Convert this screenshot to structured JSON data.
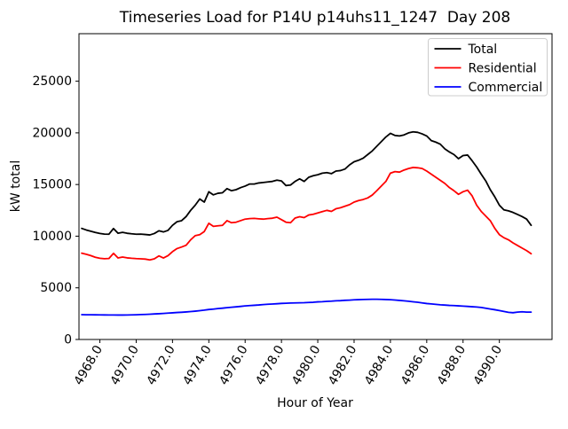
{
  "chart_data": {
    "type": "line",
    "title": "Timeseries Load for P14U p14uhs11_1247  Day 208",
    "xlabel": "Hour of Year",
    "ylabel": "kW total",
    "xlim": [
      4966.85,
      4992.9
    ],
    "ylim": [
      0,
      29600
    ],
    "grid": false,
    "x_tick_rotation": 60,
    "xticks": [
      4968,
      4970,
      4972,
      4974,
      4976,
      4978,
      4980,
      4982,
      4984,
      4986,
      4988,
      4990
    ],
    "xtick_labels": [
      "4968.0",
      "4970.0",
      "4972.0",
      "4974.0",
      "4976.0",
      "4978.0",
      "4980.0",
      "4982.0",
      "4984.0",
      "4986.0",
      "4988.0",
      "4990.0"
    ],
    "yticks": [
      0,
      5000,
      10000,
      15000,
      20000,
      25000
    ],
    "ytick_labels": [
      "0",
      "5000",
      "10000",
      "15000",
      "20000",
      "25000"
    ],
    "legend": {
      "position": "upper right",
      "entries": [
        {
          "label": "Total",
          "color": "#000000"
        },
        {
          "label": "Residential",
          "color": "#ff0000"
        },
        {
          "label": "Commercial",
          "color": "#0000ff"
        }
      ]
    },
    "x": [
      4967.0,
      4967.25,
      4967.5,
      4967.75,
      4968.0,
      4968.25,
      4968.5,
      4968.75,
      4969.0,
      4969.25,
      4969.5,
      4969.75,
      4970.0,
      4970.25,
      4970.5,
      4970.75,
      4971.0,
      4971.25,
      4971.5,
      4971.75,
      4972.0,
      4972.25,
      4972.5,
      4972.75,
      4973.0,
      4973.25,
      4973.5,
      4973.75,
      4974.0,
      4974.25,
      4974.5,
      4974.75,
      4975.0,
      4975.25,
      4975.5,
      4975.75,
      4976.0,
      4976.25,
      4976.5,
      4976.75,
      4977.0,
      4977.25,
      4977.5,
      4977.75,
      4978.0,
      4978.25,
      4978.5,
      4978.75,
      4979.0,
      4979.25,
      4979.5,
      4979.75,
      4980.0,
      4980.25,
      4980.5,
      4980.75,
      4981.0,
      4981.25,
      4981.5,
      4981.75,
      4982.0,
      4982.25,
      4982.5,
      4982.75,
      4983.0,
      4983.25,
      4983.5,
      4983.75,
      4984.0,
      4984.25,
      4984.5,
      4984.75,
      4985.0,
      4985.25,
      4985.5,
      4985.75,
      4986.0,
      4986.25,
      4986.5,
      4986.75,
      4987.0,
      4987.25,
      4987.5,
      4987.75,
      4988.0,
      4988.25,
      4988.5,
      4988.75,
      4989.0,
      4989.25,
      4989.5,
      4989.75,
      4990.0,
      4990.25,
      4990.5,
      4990.75,
      4991.0,
      4991.25,
      4991.5,
      4991.75
    ],
    "series": [
      {
        "name": "Total",
        "color": "#000000",
        "values": [
          10750,
          10600,
          10480,
          10360,
          10260,
          10200,
          10190,
          10740,
          10280,
          10370,
          10280,
          10230,
          10190,
          10200,
          10160,
          10120,
          10260,
          10520,
          10410,
          10560,
          11050,
          11400,
          11500,
          11900,
          12500,
          13000,
          13600,
          13300,
          14300,
          14000,
          14150,
          14200,
          14600,
          14400,
          14500,
          14700,
          14850,
          15050,
          15050,
          15150,
          15200,
          15250,
          15300,
          15420,
          15350,
          14900,
          14950,
          15300,
          15550,
          15300,
          15700,
          15850,
          15950,
          16100,
          16150,
          16050,
          16300,
          16350,
          16500,
          16900,
          17200,
          17350,
          17550,
          17900,
          18250,
          18700,
          19150,
          19600,
          19950,
          19750,
          19700,
          19800,
          20000,
          20100,
          20050,
          19900,
          19700,
          19250,
          19100,
          18900,
          18450,
          18150,
          17900,
          17500,
          17800,
          17850,
          17300,
          16700,
          16000,
          15350,
          14500,
          13800,
          13000,
          12550,
          12450,
          12300,
          12100,
          11900,
          11650,
          11050
        ]
      },
      {
        "name": "Residential",
        "color": "#ff0000",
        "values": [
          8350,
          8250,
          8120,
          7960,
          7860,
          7820,
          7840,
          8340,
          7890,
          7980,
          7900,
          7860,
          7830,
          7810,
          7780,
          7700,
          7810,
          8090,
          7890,
          8110,
          8500,
          8800,
          8950,
          9120,
          9650,
          10050,
          10150,
          10450,
          11250,
          10950,
          11000,
          11050,
          11500,
          11300,
          11350,
          11500,
          11650,
          11700,
          11720,
          11680,
          11650,
          11700,
          11740,
          11840,
          11600,
          11350,
          11300,
          11750,
          11880,
          11800,
          12050,
          12120,
          12250,
          12380,
          12500,
          12400,
          12650,
          12750,
          12900,
          13050,
          13300,
          13450,
          13550,
          13700,
          13980,
          14400,
          14850,
          15300,
          16100,
          16250,
          16200,
          16400,
          16550,
          16650,
          16620,
          16550,
          16300,
          16000,
          15700,
          15400,
          15100,
          14700,
          14400,
          14050,
          14300,
          14450,
          13900,
          13000,
          12400,
          11950,
          11500,
          10750,
          10150,
          9850,
          9650,
          9350,
          9100,
          8850,
          8600,
          8300
        ]
      },
      {
        "name": "Commercial",
        "color": "#0000ff",
        "values": [
          2400,
          2395,
          2390,
          2385,
          2380,
          2375,
          2370,
          2370,
          2365,
          2365,
          2370,
          2380,
          2395,
          2410,
          2425,
          2445,
          2470,
          2495,
          2520,
          2550,
          2580,
          2610,
          2635,
          2665,
          2700,
          2740,
          2790,
          2840,
          2900,
          2940,
          2990,
          3030,
          3080,
          3120,
          3160,
          3200,
          3250,
          3280,
          3310,
          3340,
          3380,
          3410,
          3430,
          3460,
          3490,
          3510,
          3530,
          3540,
          3550,
          3560,
          3580,
          3600,
          3640,
          3660,
          3690,
          3710,
          3740,
          3760,
          3790,
          3810,
          3840,
          3855,
          3870,
          3885,
          3895,
          3890,
          3880,
          3865,
          3850,
          3820,
          3780,
          3740,
          3700,
          3650,
          3600,
          3540,
          3480,
          3440,
          3400,
          3360,
          3330,
          3300,
          3280,
          3255,
          3230,
          3200,
          3170,
          3140,
          3100,
          3020,
          2950,
          2880,
          2800,
          2710,
          2630,
          2590,
          2650,
          2680,
          2650,
          2650
        ]
      }
    ]
  }
}
